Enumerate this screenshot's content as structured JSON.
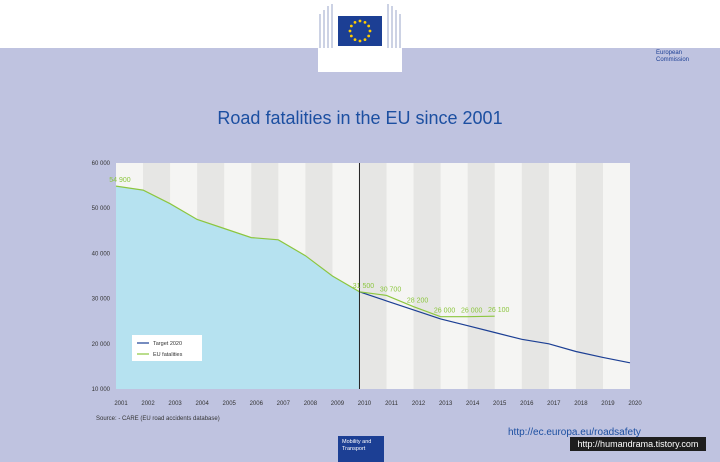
{
  "header": {
    "org_name_line1": "European",
    "org_name_line2": "Commission"
  },
  "title": "Road fatalities in the EU since 2001",
  "source": "Source: - CARE (EU road accidents database)",
  "url": "http://ec.europa.eu/roadsafety",
  "footer": {
    "dg_line1": "Mobility and",
    "dg_line2": "Transport"
  },
  "watermark": "http://humandrama.tistory.com",
  "chart_data": {
    "type": "line",
    "title": "Road fatalities in the EU since 2001",
    "x": [
      2001,
      2002,
      2003,
      2004,
      2005,
      2006,
      2007,
      2008,
      2009,
      2010,
      2011,
      2012,
      2013,
      2014,
      2015,
      2016,
      2017,
      2018,
      2019,
      2020
    ],
    "x_tick_labels": [
      "2001",
      "2002",
      "2003",
      "2004",
      "2005",
      "2006",
      "2007",
      "2008",
      "2009",
      "2010",
      "2011",
      "2012",
      "2013",
      "2014",
      "2015",
      "2016",
      "2017",
      "2018",
      "2019",
      "2020"
    ],
    "ylim": [
      10000,
      60000
    ],
    "y_ticks": [
      10000,
      20000,
      30000,
      40000,
      50000,
      60000
    ],
    "y_tick_labels": [
      "10 000",
      "20 000",
      "30 000",
      "40 000",
      "50 000",
      "60 000"
    ],
    "series": [
      {
        "name": "Target 2020",
        "color": "#1c3f94",
        "x": [
          2010,
          2011,
          2012,
          2013,
          2014,
          2015,
          2016,
          2017,
          2018,
          2019,
          2020
        ],
        "values": [
          31500,
          29500,
          27500,
          25500,
          24000,
          22500,
          21000,
          20000,
          18300,
          17000,
          15800
        ]
      },
      {
        "name": "EU fatalities",
        "color": "#8cc63f",
        "x": [
          2001,
          2002,
          2003,
          2004,
          2005,
          2006,
          2007,
          2008,
          2009,
          2010,
          2011,
          2012,
          2013,
          2014,
          2015
        ],
        "values": [
          54900,
          54000,
          51000,
          47500,
          45500,
          43500,
          43000,
          39500,
          35000,
          31500,
          30700,
          28200,
          26000,
          26000,
          26100
        ]
      }
    ],
    "data_labels": [
      {
        "x": 2001,
        "y": 54900,
        "text": "54 900"
      },
      {
        "x": 2010,
        "y": 31500,
        "text": "31 500"
      },
      {
        "x": 2011,
        "y": 30700,
        "text": "30 700"
      },
      {
        "x": 2012,
        "y": 28200,
        "text": "28 200"
      },
      {
        "x": 2013,
        "y": 26000,
        "text": "26 000"
      },
      {
        "x": 2014,
        "y": 26000,
        "text": "26 000"
      },
      {
        "x": 2015,
        "y": 26100,
        "text": "26 100"
      }
    ],
    "shaded_area_series": "EU fatalities",
    "shaded_area_range": [
      2001,
      2010
    ],
    "divider_x": 2010,
    "legend": [
      "Target 2020",
      "EU fatalities"
    ],
    "legend_position": "bottom-left",
    "colors": {
      "area_fill": "#b6e2f0",
      "band_light": "#f5f5f3",
      "band_dark": "#e6e6e4",
      "divider": "#222222"
    }
  }
}
